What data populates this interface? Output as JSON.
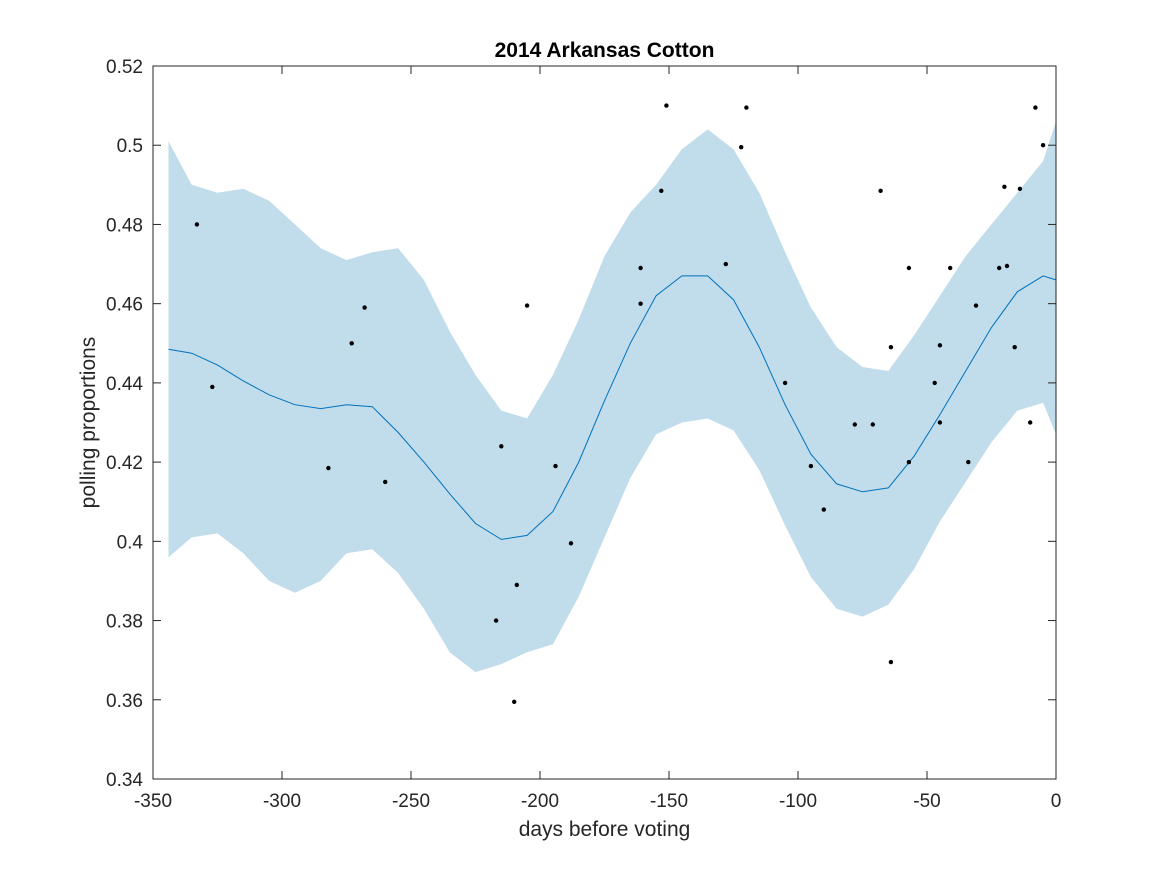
{
  "chart_data": {
    "type": "scatter",
    "title": "2014 Arkansas Cotton",
    "xlabel": "days before voting",
    "ylabel": "polling proportions",
    "xlim": [
      -350,
      0
    ],
    "ylim": [
      0.34,
      0.52
    ],
    "xticks": [
      -350,
      -300,
      -250,
      -200,
      -150,
      -100,
      -50,
      0
    ],
    "xtick_labels": [
      "-350",
      "-300",
      "-250",
      "-200",
      "-150",
      "-100",
      "-50",
      "0"
    ],
    "yticks": [
      0.34,
      0.36,
      0.38,
      0.4,
      0.42,
      0.44,
      0.46,
      0.48,
      0.5,
      0.52
    ],
    "ytick_labels": [
      "0.34",
      "0.36",
      "0.38",
      "0.4",
      "0.42",
      "0.44",
      "0.46",
      "0.48",
      "0.5",
      "0.52"
    ],
    "grid": false,
    "colors": {
      "band": "#c1dcea",
      "line": "#0072bd",
      "points": "#000000",
      "axes": "#262626"
    },
    "band": {
      "x": [
        -344,
        -335,
        -325,
        -315,
        -305,
        -295,
        -285,
        -275,
        -265,
        -255,
        -245,
        -235,
        -225,
        -215,
        -205,
        -195,
        -185,
        -175,
        -165,
        -155,
        -145,
        -135,
        -125,
        -115,
        -105,
        -95,
        -85,
        -75,
        -65,
        -55,
        -45,
        -35,
        -25,
        -15,
        -5,
        0
      ],
      "upper": [
        0.501,
        0.49,
        0.488,
        0.489,
        0.486,
        0.48,
        0.474,
        0.471,
        0.473,
        0.474,
        0.466,
        0.453,
        0.442,
        0.433,
        0.431,
        0.442,
        0.456,
        0.472,
        0.483,
        0.49,
        0.499,
        0.504,
        0.499,
        0.488,
        0.473,
        0.459,
        0.449,
        0.444,
        0.443,
        0.452,
        0.462,
        0.472,
        0.48,
        0.488,
        0.496,
        0.506
      ],
      "lower": [
        0.396,
        0.401,
        0.402,
        0.397,
        0.39,
        0.387,
        0.39,
        0.397,
        0.398,
        0.392,
        0.383,
        0.372,
        0.367,
        0.369,
        0.372,
        0.374,
        0.386,
        0.401,
        0.416,
        0.427,
        0.43,
        0.431,
        0.428,
        0.418,
        0.404,
        0.391,
        0.383,
        0.381,
        0.384,
        0.393,
        0.405,
        0.415,
        0.425,
        0.433,
        0.435,
        0.427
      ]
    },
    "mean": {
      "x": [
        -344,
        -335,
        -325,
        -315,
        -305,
        -295,
        -285,
        -275,
        -265,
        -255,
        -245,
        -235,
        -225,
        -215,
        -205,
        -195,
        -185,
        -175,
        -165,
        -155,
        -145,
        -135,
        -125,
        -115,
        -105,
        -95,
        -85,
        -75,
        -65,
        -55,
        -45,
        -35,
        -25,
        -15,
        -5,
        0
      ],
      "y": [
        0.4485,
        0.4475,
        0.4445,
        0.4405,
        0.437,
        0.4345,
        0.4335,
        0.4345,
        0.434,
        0.4275,
        0.42,
        0.412,
        0.4045,
        0.4005,
        0.4015,
        0.4075,
        0.42,
        0.4355,
        0.45,
        0.462,
        0.467,
        0.467,
        0.461,
        0.449,
        0.4345,
        0.422,
        0.4145,
        0.4125,
        0.4135,
        0.4215,
        0.432,
        0.443,
        0.454,
        0.463,
        0.467,
        0.466
      ]
    },
    "points": {
      "x": [
        -333,
        -327,
        -282,
        -273,
        -268,
        -260,
        -215,
        -217,
        -210,
        -209,
        -205,
        -194,
        -188,
        -161,
        -161,
        -153,
        -151,
        -128,
        -122,
        -120,
        -105,
        -95,
        -90,
        -78,
        -71,
        -68,
        -64,
        -64,
        -57,
        -57,
        -47,
        -45,
        -45,
        -41,
        -34,
        -31,
        -22,
        -20,
        -19,
        -16,
        -14,
        -10,
        -8,
        -5
      ],
      "y": [
        0.48,
        0.439,
        0.4185,
        0.45,
        0.459,
        0.415,
        0.424,
        0.38,
        0.3595,
        0.389,
        0.4595,
        0.419,
        0.3995,
        0.469,
        0.46,
        0.4885,
        0.51,
        0.47,
        0.4995,
        0.5095,
        0.44,
        0.419,
        0.408,
        0.4295,
        0.4295,
        0.4885,
        0.449,
        0.3695,
        0.469,
        0.42,
        0.44,
        0.4495,
        0.43,
        0.469,
        0.42,
        0.4595,
        0.469,
        0.4895,
        0.4695,
        0.449,
        0.489,
        0.43,
        0.5095,
        0.5
      ]
    }
  }
}
